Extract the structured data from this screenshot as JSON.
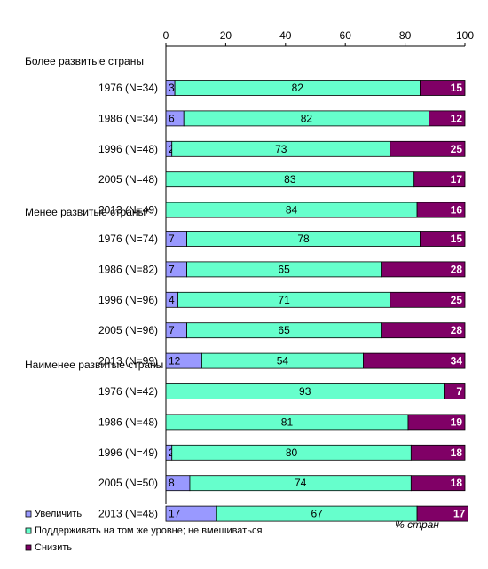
{
  "chart_data": {
    "type": "bar",
    "stacked": true,
    "orientation": "horizontal",
    "xlim": [
      0,
      100
    ],
    "x_ticks": [
      "0",
      "20",
      "40",
      "60",
      "80",
      "100"
    ],
    "grid": false,
    "xlabel": "% стран",
    "legend_position": "bottom-left",
    "series": [
      {
        "name": "Увеличить",
        "color": "#9999FF"
      },
      {
        "name": "Поддерживать на том же уровне; не вмешиваться",
        "color": "#66FFCC"
      },
      {
        "name": "Снизить",
        "color": "#800066"
      }
    ],
    "groups": [
      {
        "label": "Более развитые страны",
        "rows": [
          {
            "label": "1976 (N=34)",
            "values": [
              3,
              82,
              15
            ]
          },
          {
            "label": "1986 (N=34)",
            "values": [
              6,
              82,
              12
            ]
          },
          {
            "label": "1996 (N=48)",
            "values": [
              2,
              73,
              25
            ]
          },
          {
            "label": "2005 (N=48)",
            "values": [
              0,
              83,
              17
            ]
          },
          {
            "label": "2013 (N=49)",
            "values": [
              0,
              84,
              16
            ]
          }
        ]
      },
      {
        "label": "Менее развитые страны*",
        "rows": [
          {
            "label": "1976 (N=74)",
            "values": [
              7,
              78,
              15
            ]
          },
          {
            "label": "1986 (N=82)",
            "values": [
              7,
              65,
              28
            ]
          },
          {
            "label": "1996 (N=96)",
            "values": [
              4,
              71,
              25
            ]
          },
          {
            "label": "2005 (N=96)",
            "values": [
              7,
              65,
              28
            ]
          },
          {
            "label": "2013 (N=99)",
            "values": [
              12,
              54,
              34
            ]
          }
        ]
      },
      {
        "label": "Наименее развитые страны",
        "rows": [
          {
            "label": "1976 (N=42)",
            "values": [
              0,
              93,
              7
            ]
          },
          {
            "label": "1986 (N=48)",
            "values": [
              0,
              81,
              19
            ]
          },
          {
            "label": "1996 (N=49)",
            "values": [
              2,
              80,
              18
            ]
          },
          {
            "label": "2005 (N=50)",
            "values": [
              8,
              74,
              18
            ]
          },
          {
            "label": "2013 (N=48)",
            "values": [
              17,
              67,
              17
            ]
          }
        ]
      }
    ]
  }
}
